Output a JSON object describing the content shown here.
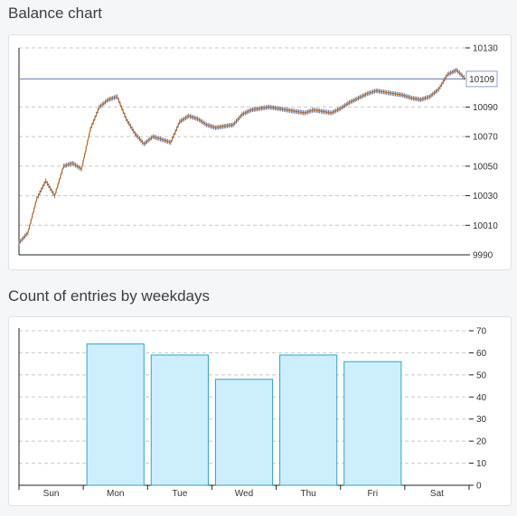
{
  "balance": {
    "title": "Balance chart",
    "current_value_label": "10109",
    "chart_data": {
      "type": "line",
      "title": "Balance chart",
      "ylim": [
        9990,
        10130
      ],
      "y_ticks": [
        "10130",
        "10109",
        "10090",
        "10070",
        "10050",
        "10030",
        "10010",
        "9990"
      ],
      "current_value": 10109,
      "line_color": "#c06a1c",
      "candle_color": "#4a5a8a",
      "grid": true,
      "x": [
        0,
        2,
        4,
        6,
        8,
        10,
        12,
        14,
        16,
        18,
        20,
        22,
        24,
        26,
        28,
        30,
        32,
        34,
        36,
        38,
        40,
        42,
        44,
        46,
        48,
        50,
        52,
        54,
        56,
        58,
        60,
        62,
        64,
        66,
        68,
        70,
        72,
        74,
        76,
        78,
        80,
        82,
        84,
        86,
        88,
        90,
        92,
        94,
        96,
        98,
        100
      ],
      "values": [
        9998,
        10005,
        10028,
        10040,
        10030,
        10050,
        10052,
        10048,
        10075,
        10090,
        10095,
        10097,
        10082,
        10072,
        10065,
        10070,
        10068,
        10066,
        10080,
        10084,
        10082,
        10078,
        10076,
        10077,
        10078,
        10085,
        10088,
        10089,
        10090,
        10089,
        10088,
        10087,
        10086,
        10088,
        10087,
        10086,
        10089,
        10093,
        10096,
        10099,
        10101,
        10100,
        10099,
        10098,
        10096,
        10095,
        10097,
        10102,
        10112,
        10115,
        10109
      ]
    }
  },
  "weekdays": {
    "title": "Count of entries by weekdays",
    "chart_data": {
      "type": "bar",
      "categories": [
        "Sun",
        "Mon",
        "Tue",
        "Wed",
        "Thu",
        "Fri",
        "Sat"
      ],
      "values": [
        0,
        64,
        59,
        48,
        59,
        56,
        0
      ],
      "ylim": [
        0,
        70
      ],
      "y_ticks": [
        "70",
        "60",
        "50",
        "40",
        "30",
        "20",
        "10",
        "0"
      ],
      "bar_fill": "#cdeefc",
      "bar_stroke": "#2aa6c8",
      "grid": true
    }
  }
}
